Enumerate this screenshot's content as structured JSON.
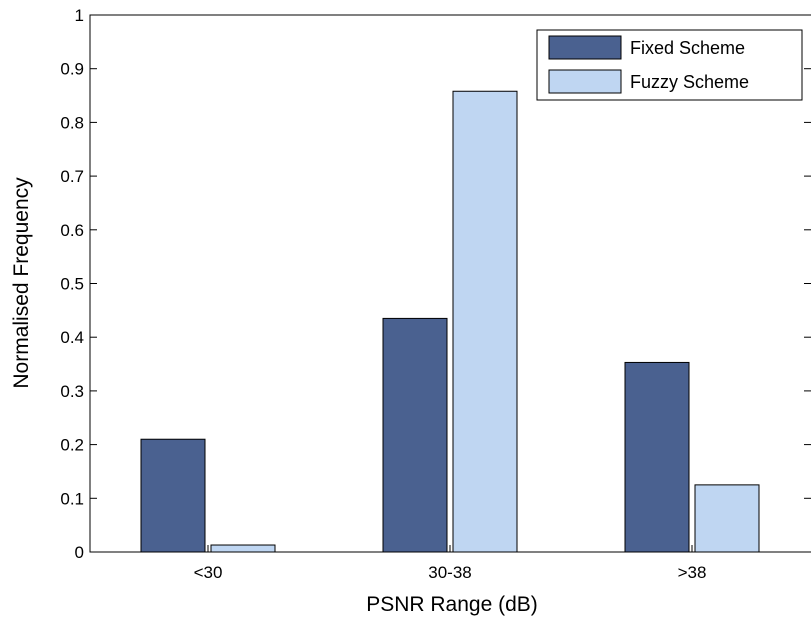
{
  "chart_data": {
    "type": "bar",
    "categories": [
      "<30",
      "30-38",
      ">38"
    ],
    "series": [
      {
        "name": "Fixed Scheme",
        "values": [
          0.21,
          0.435,
          0.353
        ],
        "color": "#4a6190"
      },
      {
        "name": "Fuzzy Scheme",
        "values": [
          0.013,
          0.858,
          0.125
        ],
        "color": "#bfd6f2"
      }
    ],
    "xlabel": "PSNR Range (dB)",
    "ylabel": "Normalised Frequency",
    "ylim": [
      0,
      1
    ],
    "yticks": [
      "0",
      "0.1",
      "0.2",
      "0.3",
      "0.4",
      "0.5",
      "0.6",
      "0.7",
      "0.8",
      "0.9",
      "1"
    ],
    "grid": false,
    "legend_position": "top-right"
  }
}
